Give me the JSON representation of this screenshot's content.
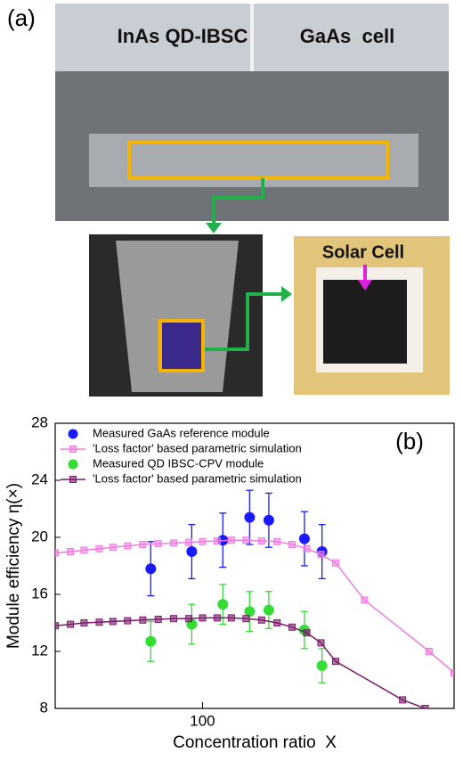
{
  "panel_a": {
    "label": "(a)",
    "module_left": "InAs QD-IBSC",
    "module_right": "GaAs  cell",
    "cell_label": "Solar Cell"
  },
  "chart_data": {
    "type": "scatter",
    "panel_label": "(b)",
    "x_label": "Concentration ratio  X",
    "y_label": "Module efficiency η(×)",
    "xscale": "log",
    "xlim": [
      32,
      700
    ],
    "xticks": [
      100
    ],
    "ylim": [
      8,
      28
    ],
    "yticks": [
      8,
      12,
      16,
      20,
      24,
      28
    ],
    "legend": "upper left",
    "series": [
      {
        "name": "Measured GaAs reference module",
        "color": "#1a1aff",
        "marker": "circle",
        "x": [
          67,
          92,
          117,
          144,
          167,
          220,
          252
        ],
        "values": [
          17.8,
          19.0,
          19.8,
          21.4,
          21.2,
          19.9,
          19.0
        ],
        "errors": [
          1.9,
          1.9,
          1.9,
          1.9,
          1.9,
          1.9,
          1.9
        ]
      },
      {
        "name": "'Loss factor' based parametric simulation",
        "color": "#f07ce0",
        "marker": "square",
        "x": [
          32,
          36,
          40,
          45,
          50,
          56,
          63,
          71,
          80,
          90,
          100,
          112,
          125,
          140,
          158,
          178,
          200,
          224,
          250,
          280,
          350,
          577,
          700
        ],
        "values": [
          18.9,
          19.0,
          19.1,
          19.2,
          19.3,
          19.4,
          19.5,
          19.55,
          19.6,
          19.65,
          19.7,
          19.75,
          19.8,
          19.8,
          19.75,
          19.7,
          19.5,
          19.2,
          18.8,
          18.2,
          15.6,
          12.0,
          10.5
        ]
      },
      {
        "name": "Measured QD IBSC-CPV module",
        "color": "#33dd33",
        "marker": "circle",
        "x": [
          67,
          92,
          117,
          144,
          167,
          220,
          252
        ],
        "values": [
          12.7,
          13.9,
          15.3,
          14.8,
          14.9,
          13.5,
          11.0
        ],
        "errors": [
          1.4,
          1.4,
          1.4,
          1.4,
          1.3,
          1.3,
          1.2
        ]
      },
      {
        "name": "'Loss factor' based parametric simulation",
        "color": "#7a1a6a",
        "marker": "square",
        "x": [
          32,
          36,
          40,
          45,
          50,
          56,
          63,
          71,
          80,
          90,
          100,
          112,
          125,
          140,
          158,
          178,
          200,
          224,
          250,
          280,
          470,
          560
        ],
        "values": [
          13.8,
          13.9,
          14.0,
          14.05,
          14.1,
          14.15,
          14.2,
          14.25,
          14.3,
          14.3,
          14.35,
          14.35,
          14.35,
          14.3,
          14.2,
          14.0,
          13.7,
          13.3,
          12.6,
          11.3,
          8.6,
          8.0
        ]
      }
    ]
  }
}
